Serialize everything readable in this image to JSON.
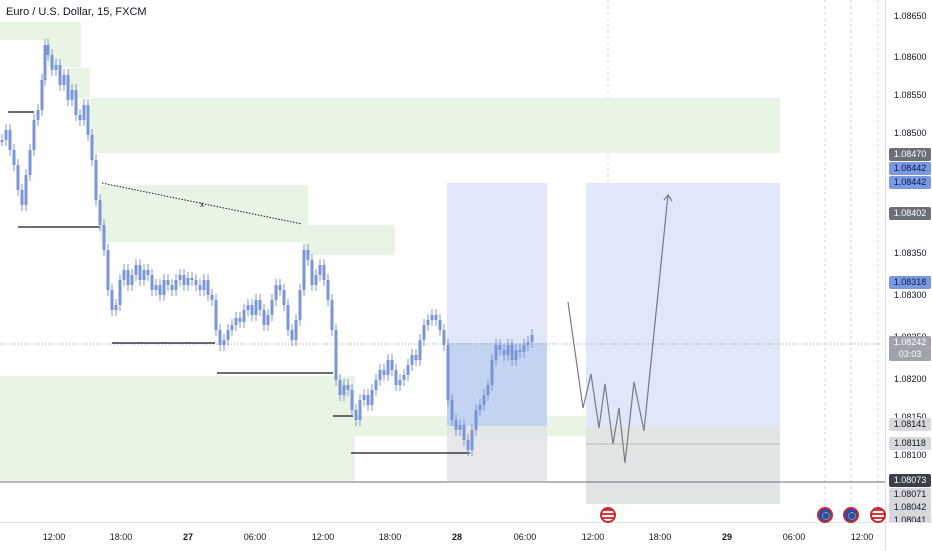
{
  "header": {
    "title": "Euro / U.S. Dollar, 15, FXCM"
  },
  "price_axis": {
    "ticks": [
      "1.08650",
      "1.08600",
      "1.08550",
      "1.08500",
      "1.08350",
      "1.08300",
      "1.08200",
      "1.08150",
      "1.08100"
    ],
    "tags": [
      {
        "label": "1.08470",
        "style": "gray"
      },
      {
        "label": "1.08442",
        "style": "blue"
      },
      {
        "label": "1.08442",
        "style": "blue"
      },
      {
        "label": "1.08402",
        "style": "gray"
      },
      {
        "label": "1.08318",
        "style": "blue"
      },
      {
        "label": "1.08242",
        "style": "grayish"
      },
      {
        "label": "03:03",
        "style": "grayish"
      },
      {
        "label": "1.08141",
        "style": "light"
      },
      {
        "label": "1.08118",
        "style": "light"
      },
      {
        "label": "1.08073",
        "style": "dark"
      },
      {
        "label": "1.08071",
        "style": "light"
      },
      {
        "label": "1.08042",
        "style": "light"
      },
      {
        "label": "1.08041",
        "style": "light"
      }
    ],
    "partial_tick": "1.08250"
  },
  "time_axis": {
    "ticks": [
      {
        "label": "12:00",
        "bold": false
      },
      {
        "label": "18:00",
        "bold": false
      },
      {
        "label": "27",
        "bold": true
      },
      {
        "label": "06:00",
        "bold": false
      },
      {
        "label": "12:00",
        "bold": false
      },
      {
        "label": "18:00",
        "bold": false
      },
      {
        "label": "28",
        "bold": true
      },
      {
        "label": "06:00",
        "bold": false
      },
      {
        "label": "12:00",
        "bold": false
      },
      {
        "label": "18:00",
        "bold": false
      },
      {
        "label": "29",
        "bold": true
      },
      {
        "label": "06:00",
        "bold": false
      },
      {
        "label": "12:00",
        "bold": false
      }
    ]
  },
  "events": [
    {
      "icon": "us-flag-icon"
    },
    {
      "icon": "eu-flag-icon"
    },
    {
      "icon": "eu-flag-icon"
    },
    {
      "icon": "us-flag-icon"
    }
  ],
  "annotations": {
    "trendline_marker": "x"
  },
  "colors": {
    "candle": "#7c95d6",
    "demand_zone": "#e8f5e4",
    "target_zone": "#dfe7f8",
    "profit_zone": "#c5d3f3",
    "loss_zone": "#e2e3e6",
    "grid": "#f0f3fa"
  }
}
